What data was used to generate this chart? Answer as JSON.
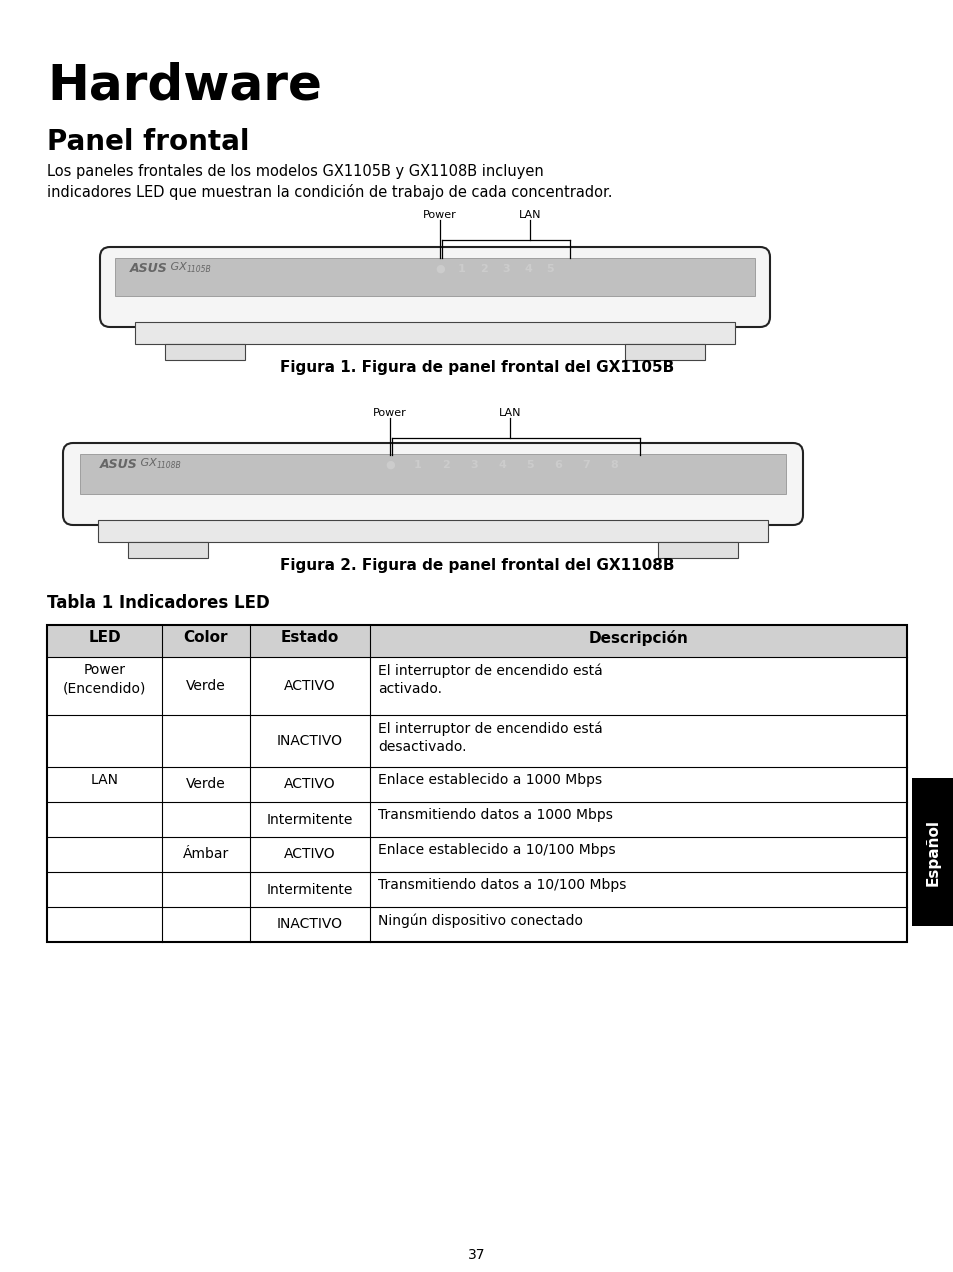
{
  "title": "Hardware",
  "subtitle": "Panel frontal",
  "body_line1": "Los paneles frontales de los modelos GX1105B y GX1108B incluyen",
  "body_line2": "indicadores LED que muestran la condición de trabajo de cada concentrador.",
  "fig1_caption": "Figura 1. Figura de panel frontal del GX1105B",
  "fig2_caption": "Figura 2. Figura de panel frontal del GX1108B",
  "table_title": "Tabla 1 Indicadores LED",
  "table_headers": [
    "LED",
    "Color",
    "Estado",
    "Descripción"
  ],
  "table_rows": [
    [
      "Power\n(Encendido)",
      "Verde",
      "ACTIVO",
      "El interruptor de encendido está\nactivado."
    ],
    [
      "",
      "",
      "INACTIVO",
      "El interruptor de encendido está\ndesactivado."
    ],
    [
      "LAN",
      "Verde",
      "ACTIVO",
      "Enlace establecido a 1000 Mbps"
    ],
    [
      "",
      "",
      "Intermitente",
      "Transmitiendo datos a 1000 Mbps"
    ],
    [
      "",
      "Ámbar",
      "ACTIVO",
      "Enlace establecido a 10/100 Mbps"
    ],
    [
      "",
      "",
      "Intermitente",
      "Transmitiendo datos a 10/100 Mbps"
    ],
    [
      "",
      "",
      "INACTIVO",
      "Ningún dispositivo conectado"
    ]
  ],
  "page_number": "37",
  "espanol_tab": "Español",
  "bg_color": "#ffffff"
}
